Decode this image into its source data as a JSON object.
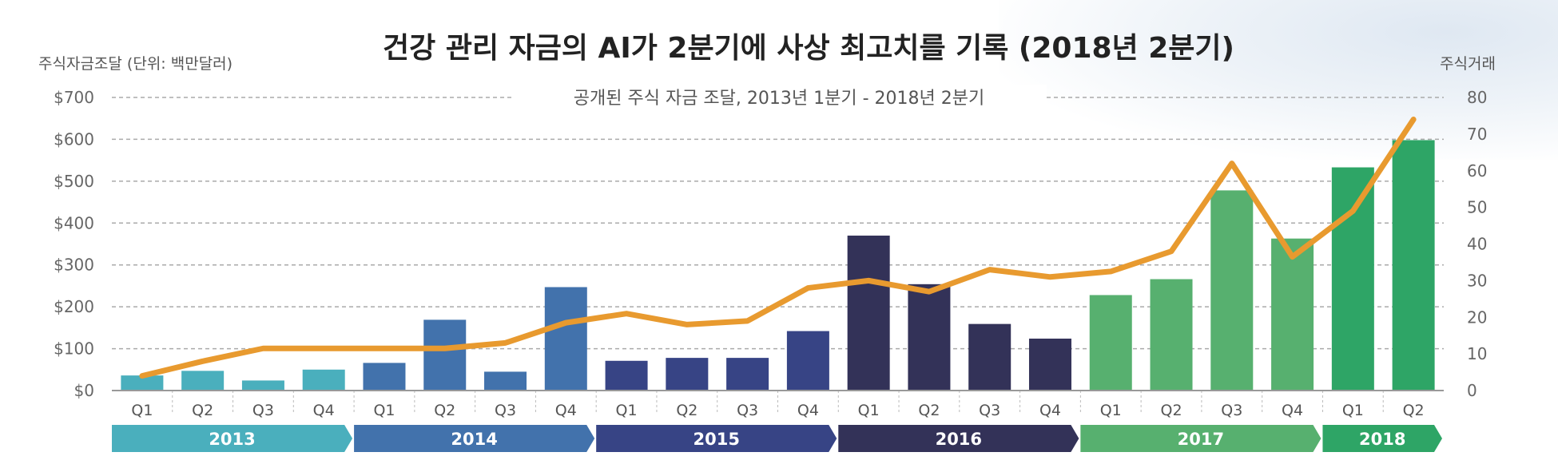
{
  "chart_data": {
    "type": "bar+line",
    "title": "건강 관리 자금의 AI가 2분기에 사상 최고치를 기록 (2018년 2분기)",
    "subtitle": "공개된 주식 자금 조달, 2013년 1분기 - 2018년 2분기",
    "ylabel_left": "주식자금조달 (단위: 백만달러)",
    "ylabel_right": "주식거래",
    "ylim_left": [
      0,
      700
    ],
    "ylim_right": [
      0,
      80
    ],
    "left_ticks": [
      "$0",
      "$100",
      "$200",
      "$300",
      "$400",
      "$500",
      "$600",
      "$700"
    ],
    "right_ticks": [
      "0",
      "10",
      "20",
      "30",
      "40",
      "50",
      "60",
      "70",
      "80"
    ],
    "grid": true,
    "years": [
      {
        "label": "2013",
        "quarters": [
          "Q1",
          "Q2",
          "Q3",
          "Q4"
        ],
        "color": "#4aafbd"
      },
      {
        "label": "2014",
        "quarters": [
          "Q1",
          "Q2",
          "Q3",
          "Q4"
        ],
        "color": "#4272ac"
      },
      {
        "label": "2015",
        "quarters": [
          "Q1",
          "Q2",
          "Q3",
          "Q4"
        ],
        "color": "#374485"
      },
      {
        "label": "2016",
        "quarters": [
          "Q1",
          "Q2",
          "Q3",
          "Q4"
        ],
        "color": "#333258"
      },
      {
        "label": "2017",
        "quarters": [
          "Q1",
          "Q2",
          "Q3",
          "Q4"
        ],
        "color": "#57b06f"
      },
      {
        "label": "2018",
        "quarters": [
          "Q1",
          "Q2"
        ],
        "color": "#2ea566"
      }
    ],
    "series": [
      {
        "type": "bar",
        "axis": "left",
        "values": [
          36,
          47,
          24,
          50,
          66,
          169,
          45,
          247,
          71,
          78,
          78,
          142,
          370,
          254,
          159,
          124,
          228,
          266,
          478,
          363,
          533,
          598
        ]
      },
      {
        "type": "line",
        "axis": "right",
        "color": "#e89a2f",
        "values": [
          4,
          8,
          11.5,
          11.5,
          11.5,
          11.5,
          13,
          18.5,
          21,
          18,
          19,
          28,
          30,
          27,
          33,
          31,
          32.5,
          38,
          62,
          36.5,
          49,
          74
        ]
      }
    ]
  }
}
